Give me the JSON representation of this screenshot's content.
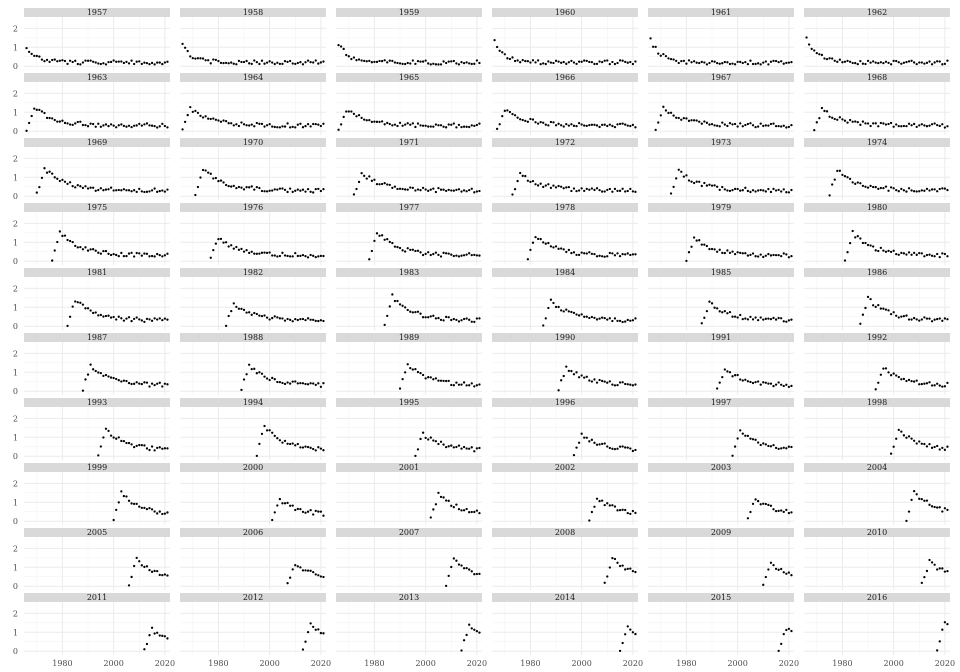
{
  "chart_data": {
    "type": "scatter",
    "facet_variable": "cohort",
    "panels": [
      "1957",
      "1958",
      "1959",
      "1960",
      "1961",
      "1962",
      "1963",
      "1964",
      "1965",
      "1966",
      "1967",
      "1968",
      "1969",
      "1970",
      "1971",
      "1972",
      "1973",
      "1974",
      "1975",
      "1976",
      "1977",
      "1978",
      "1979",
      "1980",
      "1981",
      "1982",
      "1983",
      "1984",
      "1985",
      "1986",
      "1987",
      "1988",
      "1989",
      "1990",
      "1991",
      "1992",
      "1993",
      "1994",
      "1995",
      "1996",
      "1997",
      "1998",
      "1999",
      "2000",
      "2001",
      "2002",
      "2003",
      "2004",
      "2005",
      "2006",
      "2007",
      "2008",
      "2009",
      "2010",
      "2011",
      "2012",
      "2013",
      "2014",
      "2015",
      "2016"
    ],
    "x_ticks": [
      1980,
      2000,
      2020
    ],
    "y_ticks": [
      0,
      1,
      2
    ],
    "xlim": [
      1965,
      2022
    ],
    "ylim": [
      -0.2,
      2.6
    ],
    "grid": true,
    "series_rule": "Each panel shows yearly points from the cohort start to 2021: rises to a peak near 1.0-1.5 a few years after start, then decays slowly toward ~0.3. Early cohorts (1957-1962) start high and decline."
  }
}
